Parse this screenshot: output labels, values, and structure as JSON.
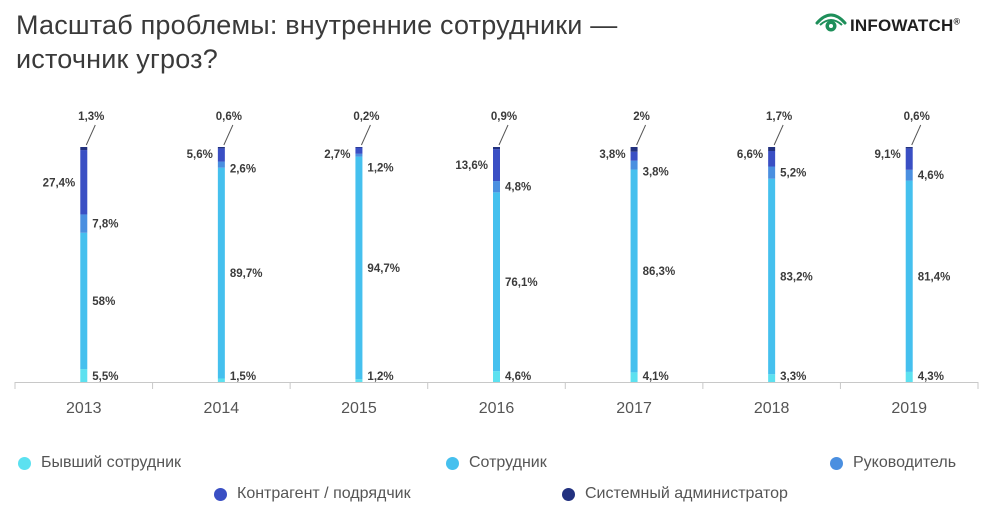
{
  "title": {
    "line1": "Масштаб проблемы: внутренние сотрудники —",
    "line2": "источник угроз?"
  },
  "logo": {
    "text": "INFOWATCH",
    "mark": "®",
    "icon": "eye-icon"
  },
  "chart_data": {
    "type": "bar",
    "stacked": true,
    "unit": "%",
    "categories": [
      "2013",
      "2014",
      "2015",
      "2016",
      "2017",
      "2018",
      "2019"
    ],
    "series": [
      {
        "name": "Бывший сотрудник",
        "color": "#5ce1f0",
        "values": [
          5.5,
          1.5,
          1.2,
          4.6,
          4.1,
          3.3,
          4.3
        ],
        "labels": [
          "5,5%",
          "1,5%",
          "1,2%",
          "4,6%",
          "4,1%",
          "3,3%",
          "4,3%"
        ]
      },
      {
        "name": "Сотрудник",
        "color": "#45c0ee",
        "values": [
          58,
          89.7,
          94.7,
          76.1,
          86.3,
          83.2,
          81.4
        ],
        "labels": [
          "58%",
          "89,7%",
          "94,7%",
          "76,1%",
          "86,3%",
          "83,2%",
          "81,4%"
        ]
      },
      {
        "name": "Руководитель",
        "color": "#4a8fe0",
        "values": [
          7.8,
          2.6,
          1.2,
          4.8,
          3.8,
          5.2,
          4.6
        ],
        "labels": [
          "7,8%",
          "2,6%",
          "1,2%",
          "4,8%",
          "3,8%",
          "5,2%",
          "4,6%"
        ]
      },
      {
        "name": "Контрагент / подрядчик",
        "color": "#3a4fc4",
        "values": [
          27.4,
          5.6,
          2.7,
          13.6,
          3.8,
          6.6,
          9.1
        ],
        "labels": [
          "27,4%",
          "5,6%",
          "2,7%",
          "13,6%",
          "3,8%",
          "6,6%",
          "9,1%"
        ]
      },
      {
        "name": "Системный администратор",
        "color": "#22317f",
        "values": [
          1.3,
          0.6,
          0.2,
          0.9,
          2,
          1.7,
          0.6
        ],
        "labels": [
          "1,3%",
          "0,6%",
          "0,2%",
          "0,9%",
          "2%",
          "1,7%",
          "0,6%"
        ]
      }
    ],
    "ylim": [
      0,
      100
    ],
    "legend": "bottom",
    "grid": false
  }
}
